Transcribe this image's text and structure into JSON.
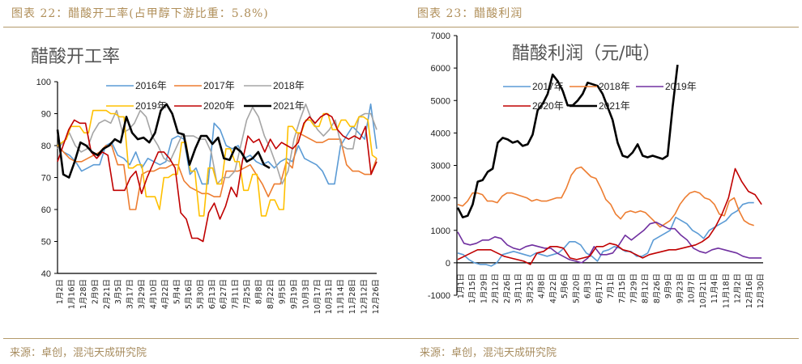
{
  "left_panel": {
    "figure_title": "图表 22：醋酸开工率(占甲醇下游比重：5.8%)",
    "source": "来源：卓创，混沌天成研究院"
  },
  "right_panel": {
    "figure_title": "图表 23：醋酸利润",
    "source": "来源：卓创，混沌天成研究院"
  },
  "chart_data": [
    {
      "type": "line",
      "title": "醋酸开工率",
      "xlabel": "",
      "ylabel": "",
      "ylim": [
        40,
        100
      ],
      "yticks": [
        "40",
        "50",
        "60",
        "70",
        "80",
        "90",
        "100"
      ],
      "grid": false,
      "legend": "top",
      "x_tick_labels": [
        "1月2日",
        "1月16日",
        "1月28日",
        "2月9日",
        "2月21日",
        "3月5日",
        "3月17日",
        "3月29日",
        "4月10日",
        "4月22日",
        "5月4日",
        "5月16日",
        "5月30日",
        "6月13日",
        "6月27日",
        "7月11日",
        "7月25日",
        "8月8日",
        "8月22日",
        "9月5日",
        "9月19日",
        "10月3日",
        "10月17日",
        "10月31日",
        "11月14日",
        "11月28日",
        "12月12日",
        "12月26日"
      ],
      "x_weeks": 53,
      "series": [
        {
          "name": "2016年",
          "color": "#5b9bd5",
          "values": [
            80,
            78,
            77,
            75,
            72,
            73,
            74,
            74,
            80,
            81,
            77,
            76,
            74,
            78,
            73,
            76,
            75,
            74,
            75,
            82,
            83,
            82,
            71,
            73,
            68,
            68,
            87,
            85,
            80,
            79,
            80,
            76,
            77,
            75,
            74,
            75,
            73,
            75,
            76,
            75,
            80,
            76,
            75,
            74,
            72,
            68,
            68,
            80,
            83,
            86,
            84,
            82,
            93,
            79
          ]
        },
        {
          "name": "2017年",
          "color": "#ed7d31",
          "values": [
            80,
            78,
            76,
            75,
            75,
            76,
            77,
            78,
            80,
            80,
            74,
            74,
            60,
            60,
            71,
            72,
            72,
            73,
            73,
            74,
            74,
            69,
            67,
            66,
            65,
            65,
            64,
            64,
            72,
            72,
            72,
            73,
            74,
            71,
            68,
            64,
            68,
            68,
            75,
            73,
            84,
            83,
            82,
            81,
            81,
            82,
            82,
            82,
            74,
            72,
            72,
            71,
            71,
            76
          ]
        },
        {
          "name": "2018年",
          "color": "#a5a5a5",
          "values": [
            79,
            81,
            84,
            80,
            78,
            79,
            84,
            87,
            88,
            87,
            91,
            84,
            85,
            87,
            91,
            89,
            83,
            80,
            76,
            75,
            79,
            83,
            83,
            83,
            82,
            82,
            78,
            68,
            70,
            70,
            72,
            80,
            88,
            92,
            89,
            83,
            79,
            74,
            68,
            72,
            82,
            88,
            93,
            88,
            85,
            83,
            85,
            88,
            80,
            79,
            79,
            89,
            90,
            90,
            85
          ]
        },
        {
          "name": "2019年",
          "color": "#ffc000",
          "values": [
            80,
            81,
            82,
            86,
            86,
            86,
            84,
            84,
            91,
            91,
            91,
            91,
            90,
            90,
            89,
            89,
            73,
            73,
            74,
            74,
            64,
            64,
            64,
            60,
            70,
            70,
            71,
            71,
            81,
            81,
            72,
            72,
            58,
            58,
            73,
            73,
            68,
            68,
            79,
            79,
            75,
            75,
            66,
            66,
            71,
            71,
            58,
            58,
            63,
            63,
            60,
            60,
            86,
            86,
            84,
            84,
            88,
            88,
            86,
            86,
            90,
            90,
            85,
            85,
            88,
            88,
            86,
            86,
            89,
            89,
            88,
            77,
            76
          ]
        },
        {
          "name": "2020年",
          "color": "#c00000",
          "values": [
            75,
            80,
            85,
            88,
            87,
            87,
            78,
            76,
            78,
            77,
            66,
            66,
            66,
            70,
            72,
            65,
            70,
            74,
            78,
            78,
            76,
            73,
            59,
            57,
            51,
            51,
            50,
            59,
            62,
            57,
            61,
            67,
            64,
            75,
            83,
            81,
            82,
            78,
            82,
            79,
            81,
            80,
            79,
            81,
            87,
            89,
            87,
            89,
            90,
            89,
            85,
            83,
            82,
            83,
            82,
            86,
            71,
            75
          ]
        },
        {
          "name": "2021年",
          "color": "#000000",
          "values": [
            85,
            71,
            70,
            75,
            81,
            80,
            78,
            77,
            79,
            80,
            82,
            81,
            89,
            84,
            82,
            82.5,
            81,
            84,
            91,
            93,
            90,
            84,
            83.5,
            74,
            79,
            83,
            83,
            80.5,
            82.5,
            76,
            75.5,
            79.5,
            78,
            75,
            76,
            78,
            74,
            73
          ]
        }
      ]
    },
    {
      "type": "line",
      "title": "醋酸利润（元/吨）",
      "xlabel": "",
      "ylabel": "",
      "ylim": [
        -1000,
        7000
      ],
      "yticks": [
        "-1000",
        "0",
        "1000",
        "2000",
        "3000",
        "4000",
        "5000",
        "6000",
        "7000"
      ],
      "grid": false,
      "legend": "top",
      "x_tick_labels": [
        "1月1日",
        "1月15日",
        "1月29日",
        "2月12日",
        "2月26日",
        "3月11日",
        "3月25日",
        "4月8日",
        "4月22日",
        "5月6日",
        "5月20日",
        "6月3日",
        "6月17日",
        "7月1日",
        "7月15日",
        "7月29日",
        "8月12日",
        "8月26日",
        "9月9日",
        "9月23日",
        "10月7日",
        "10月21日",
        "11月4日",
        "11月18日",
        "12月2日",
        "12月16日",
        "12月30日"
      ],
      "series": [
        {
          "name": "2017年",
          "color": "#5b9bd5",
          "values": [
            300,
            250,
            100,
            0,
            -50,
            -50,
            -100,
            0,
            250,
            300,
            350,
            300,
            250,
            200,
            300,
            250,
            200,
            250,
            300,
            450,
            650,
            650,
            550,
            300,
            200,
            50,
            350,
            400,
            500,
            450,
            350,
            350,
            200,
            200,
            300,
            700,
            800,
            900,
            1000,
            1400,
            1300,
            1200,
            1000,
            900,
            750,
            1000,
            1100,
            1200,
            1300,
            1500,
            1600,
            1800,
            1850,
            1850
          ]
        },
        {
          "name": "2018年",
          "color": "#ed7d31",
          "values": [
            1800,
            1750,
            1900,
            2150,
            2150,
            2100,
            1900,
            1900,
            1850,
            2050,
            2150,
            2150,
            2100,
            2050,
            2000,
            1900,
            1950,
            1900,
            1900,
            1950,
            2000,
            2000,
            2300,
            2700,
            2900,
            2950,
            2800,
            2650,
            2600,
            2300,
            1950,
            1800,
            1500,
            1350,
            1550,
            1600,
            1550,
            1600,
            1550,
            1400,
            1250,
            1100,
            1200,
            1300,
            1500,
            1800,
            2000,
            2150,
            2200,
            2150,
            2000,
            1950,
            1800,
            1500,
            1450,
            1900,
            2000,
            1600,
            1300,
            1200,
            1150
          ]
        },
        {
          "name": "2019年",
          "color": "#7030a0",
          "values": [
            950,
            600,
            550,
            600,
            700,
            700,
            800,
            750,
            550,
            450,
            400,
            500,
            550,
            500,
            450,
            450,
            300,
            200,
            100,
            50,
            0,
            150,
            500,
            250,
            250,
            300,
            550,
            850,
            700,
            850,
            1000,
            1200,
            1250,
            1150,
            1050,
            1050,
            850,
            700,
            450,
            350,
            300,
            400,
            450,
            400,
            350,
            300,
            200,
            150,
            150,
            150
          ]
        },
        {
          "name": "2020年",
          "color": "#c00000",
          "values": [
            100,
            200,
            300,
            400,
            400,
            400,
            300,
            200,
            150,
            100,
            50,
            -50,
            300,
            350,
            500,
            500,
            450,
            150,
            100,
            150,
            200,
            500,
            500,
            600,
            550,
            400,
            350,
            250,
            150,
            250,
            300,
            350,
            400,
            400,
            450,
            500,
            550,
            650,
            800,
            1100,
            1500,
            2000,
            2900,
            2500,
            2200,
            2100,
            1800
          ]
        },
        {
          "name": "2021年",
          "color": "#000000",
          "values": [
            1700,
            1400,
            1450,
            1800,
            2500,
            2550,
            2800,
            2900,
            3700,
            3850,
            3800,
            3700,
            3750,
            3600,
            3650,
            3950,
            4700,
            4900,
            5200,
            5800,
            5600,
            5300,
            4850,
            4850,
            5000,
            5200,
            5550,
            5500,
            5450,
            5200,
            4800,
            4400,
            3700,
            3300,
            3250,
            3400,
            3650,
            3300,
            3250,
            3300,
            3250,
            3200,
            3300,
            4800,
            6100
          ]
        }
      ]
    }
  ]
}
